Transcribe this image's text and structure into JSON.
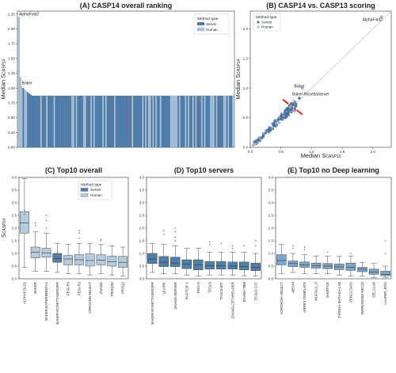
{
  "colors": {
    "server": "#4a7aa8",
    "human": "#adc7dc",
    "server_box": "#4f7fad",
    "human_box": "#b3cce0",
    "nodl_box": "#7aa7cc",
    "axis": "#333333",
    "arrow": "#e8231a",
    "diag": "#bcbcbc"
  },
  "legend": {
    "title": "Method type",
    "server": "Server",
    "human": "Human"
  },
  "chart_data": [
    {
      "id": "A",
      "type": "bar",
      "title": "(A) CASP14 overall ranking",
      "ylabel": "Median S",
      "ylabel_sub": "CASP14",
      "ylim": [
        0,
        2.3
      ],
      "yticks": [
        "0.00",
        "0.25",
        "0.50",
        "0.75",
        "1.00",
        "1.25",
        "1.50",
        "1.75",
        "2.00",
        "2.25"
      ],
      "ytick_values": [
        0,
        0.25,
        0.5,
        0.75,
        1.0,
        1.25,
        1.5,
        1.75,
        2.0,
        2.25
      ],
      "annotations": [
        {
          "text": "AlphaFold2",
          "x_index": 0,
          "y": 2.21
        },
        {
          "text": "Baker",
          "x_index": 2,
          "y": 1.05
        }
      ],
      "first_values": [
        2.2,
        1.18,
        1.02,
        1.0,
        0.97,
        0.95,
        0.93,
        0.91,
        0.89,
        0.87
      ],
      "n_bars": 146,
      "tail_min": 0.08
    },
    {
      "id": "B",
      "type": "scatter",
      "title": "(B) CASP14 vs. CASP13 scoring",
      "xlabel": "Median S",
      "xlabel_sub": "CASP13",
      "ylabel": "Median S",
      "ylabel_sub": "CASP14",
      "xlim": [
        0,
        2.3
      ],
      "ylim": [
        0,
        2.3
      ],
      "xticks": [
        "0.0",
        "0.5",
        "1.0",
        "1.5",
        "2.0"
      ],
      "xtick_values": [
        0,
        0.5,
        1.0,
        1.5,
        2.0
      ],
      "yticks": [
        "0.0",
        "0.5",
        "1.0",
        "1.5",
        "2.0"
      ],
      "ytick_values": [
        0,
        0.5,
        1.0,
        1.5,
        2.0
      ],
      "annotations": [
        {
          "text": "AlphaFold2",
          "x": 2.14,
          "y": 2.21
        },
        {
          "text": "Baker",
          "x": 0.82,
          "y": 1.02
        },
        {
          "text": "Baker-RosettaServer",
          "x": 0.79,
          "y": 0.89
        }
      ],
      "arrows": [
        {
          "x": 0.66,
          "y": 0.7,
          "dir": "from-upper-left"
        },
        {
          "x": 0.72,
          "y": 0.66,
          "dir": "from-lower-right"
        }
      ]
    },
    {
      "id": "C",
      "type": "box",
      "title": "(C) Top10 overall",
      "ylabel": "S",
      "ylabel_sub": "CASP14",
      "ylim": [
        0,
        4.0
      ],
      "yticks": [
        "0.0",
        "0.5",
        "1.0",
        "1.5",
        "2.0",
        "2.5",
        "3.0",
        "3.5",
        "4.0"
      ],
      "ytick_values": [
        0,
        0.5,
        1.0,
        1.5,
        2.0,
        2.5,
        3.0,
        3.5,
        4.0
      ],
      "categories": [
        "ALPHAFOLD2",
        "BAKER",
        "BAKER-EXPERIMENTAL",
        "BAKER-ROSETTASERVER",
        "FEIG-R3",
        "FEIG-R2",
        "VOROCNN-SELECT",
        "ZHANG",
        "PROQ3D",
        "PROQ2"
      ],
      "methods": [
        "human",
        "human",
        "human",
        "server",
        "human",
        "human",
        "human",
        "human",
        "human",
        "human"
      ],
      "boxes": [
        {
          "whislo": 0.45,
          "q1": 1.8,
          "med": 2.2,
          "q3": 2.65,
          "whishi": 3.95,
          "fliers": [
            2.7,
            2.55
          ]
        },
        {
          "whislo": 0.3,
          "q1": 0.82,
          "med": 1.05,
          "q3": 1.25,
          "whishi": 1.85,
          "fliers": [
            2.1,
            2.2
          ]
        },
        {
          "whislo": 0.3,
          "q1": 0.85,
          "med": 1.02,
          "q3": 1.2,
          "whishi": 1.8,
          "fliers": [
            2.0,
            2.3,
            2.5
          ]
        },
        {
          "whislo": 0.25,
          "q1": 0.65,
          "med": 0.8,
          "q3": 1.0,
          "whishi": 1.4,
          "fliers": []
        },
        {
          "whislo": 0.2,
          "q1": 0.55,
          "med": 0.78,
          "q3": 0.92,
          "whishi": 1.35,
          "fliers": []
        },
        {
          "whislo": 0.2,
          "q1": 0.55,
          "med": 0.75,
          "q3": 0.95,
          "whishi": 1.4,
          "fliers": [
            1.6,
            1.8,
            1.9
          ]
        },
        {
          "whislo": 0.15,
          "q1": 0.5,
          "med": 0.72,
          "q3": 0.98,
          "whishi": 1.4,
          "fliers": []
        },
        {
          "whislo": 0.2,
          "q1": 0.55,
          "med": 0.74,
          "q3": 0.95,
          "whishi": 1.35,
          "fliers": [
            1.5,
            1.55
          ]
        },
        {
          "whislo": 0.15,
          "q1": 0.5,
          "med": 0.68,
          "q3": 0.9,
          "whishi": 1.3,
          "fliers": []
        },
        {
          "whislo": 0.1,
          "q1": 0.45,
          "med": 0.65,
          "q3": 0.88,
          "whishi": 1.25,
          "fliers": []
        }
      ]
    },
    {
      "id": "D",
      "type": "box",
      "title": "(D) Top10 servers",
      "ylim": [
        0,
        4.0
      ],
      "yticks": [
        "0.0",
        "0.5",
        "1.0",
        "1.5",
        "2.0",
        "2.5",
        "3.0",
        "3.5",
        "4.0"
      ],
      "ytick_values": [
        0,
        0.5,
        1.0,
        1.5,
        2.0,
        2.5,
        3.0,
        3.5,
        4.0
      ],
      "categories": [
        "BAKER-ROSETTASERVER",
        "QUARK",
        "ZHANG-SERVER",
        "RAPTOR-X",
        "FEIG-S",
        "TFOLD",
        "TFOLD-IDT",
        "ZHANG-CETHREADER",
        "ZHANG-TBM",
        "TFOLD-CAT"
      ],
      "methods": [
        "server",
        "server",
        "server",
        "server",
        "server",
        "server",
        "server",
        "server",
        "server",
        "server"
      ],
      "boxes": [
        {
          "whislo": 0.25,
          "q1": 0.6,
          "med": 0.78,
          "q3": 1.0,
          "whishi": 1.4,
          "fliers": []
        },
        {
          "whislo": 0.2,
          "q1": 0.48,
          "med": 0.65,
          "q3": 0.88,
          "whishi": 1.35,
          "fliers": [
            1.75,
            1.9
          ]
        },
        {
          "whislo": 0.2,
          "q1": 0.48,
          "med": 0.62,
          "q3": 0.85,
          "whishi": 1.3,
          "fliers": [
            1.5,
            1.65,
            1.85,
            2.0
          ]
        },
        {
          "whislo": 0.15,
          "q1": 0.4,
          "med": 0.58,
          "q3": 0.75,
          "whishi": 1.2,
          "fliers": []
        },
        {
          "whislo": 0.1,
          "q1": 0.35,
          "med": 0.55,
          "q3": 0.75,
          "whishi": 1.2,
          "fliers": []
        },
        {
          "whislo": 0.15,
          "q1": 0.38,
          "med": 0.52,
          "q3": 0.68,
          "whishi": 1.05,
          "fliers": [
            1.35,
            1.45
          ]
        },
        {
          "whislo": 0.15,
          "q1": 0.38,
          "med": 0.52,
          "q3": 0.68,
          "whishi": 1.05,
          "fliers": [
            1.4
          ]
        },
        {
          "whislo": 0.15,
          "q1": 0.38,
          "med": 0.5,
          "q3": 0.66,
          "whishi": 1.05,
          "fliers": [
            1.2,
            1.3
          ]
        },
        {
          "whislo": 0.12,
          "q1": 0.35,
          "med": 0.48,
          "q3": 0.66,
          "whishi": 1.05,
          "fliers": [
            1.3
          ]
        },
        {
          "whislo": 0.1,
          "q1": 0.32,
          "med": 0.45,
          "q3": 0.62,
          "whishi": 1.0,
          "fliers": [
            1.3,
            1.5
          ]
        }
      ]
    },
    {
      "id": "E",
      "type": "box",
      "title": "(E) Top10 no Deep learning",
      "ylim": [
        0,
        4.0
      ],
      "yticks": [
        "0.0",
        "0.5",
        "1.0",
        "1.5",
        "2.0",
        "2.5",
        "3.0",
        "3.5",
        "4.0"
      ],
      "ytick_values": [
        0,
        0.5,
        1.0,
        1.5,
        2.0,
        2.5,
        3.0,
        3.5,
        4.0
      ],
      "categories": [
        "VORONOIA-SELECT",
        "MESHI",
        "UNRES-TEMPLATE",
        "MUFOLD_H",
        "SHORTLE",
        "TAKEDA-SHITAKA-LAB",
        "VENCLOVAS",
        "FERNANDEZ-RECIO",
        "DELCLAB",
        "LAUFER_ROS"
      ],
      "methods": [
        "human",
        "human",
        "human",
        "human",
        "human",
        "human",
        "human",
        "human",
        "human",
        "human"
      ],
      "boxes": [
        {
          "whislo": 0.2,
          "q1": 0.55,
          "med": 0.72,
          "q3": 0.95,
          "whishi": 1.35,
          "fliers": []
        },
        {
          "whislo": 0.25,
          "q1": 0.48,
          "med": 0.6,
          "q3": 0.7,
          "whishi": 1.0,
          "fliers": [
            1.2,
            1.3
          ]
        },
        {
          "whislo": 0.2,
          "q1": 0.45,
          "med": 0.55,
          "q3": 0.66,
          "whishi": 0.95,
          "fliers": [
            1.15,
            1.25
          ]
        },
        {
          "whislo": 0.2,
          "q1": 0.42,
          "med": 0.52,
          "q3": 0.62,
          "whishi": 0.9,
          "fliers": []
        },
        {
          "whislo": 0.2,
          "q1": 0.4,
          "med": 0.5,
          "q3": 0.6,
          "whishi": 0.9,
          "fliers": [
            1.05
          ]
        },
        {
          "whislo": 0.15,
          "q1": 0.36,
          "med": 0.47,
          "q3": 0.58,
          "whishi": 0.88,
          "fliers": []
        },
        {
          "whislo": 0.1,
          "q1": 0.33,
          "med": 0.45,
          "q3": 0.62,
          "whishi": 0.9,
          "fliers": [
            1.0
          ]
        },
        {
          "whislo": 0.1,
          "q1": 0.28,
          "med": 0.38,
          "q3": 0.45,
          "whishi": 0.65,
          "fliers": []
        },
        {
          "whislo": 0.05,
          "q1": 0.18,
          "med": 0.27,
          "q3": 0.38,
          "whishi": 0.6,
          "fliers": []
        },
        {
          "whislo": 0.05,
          "q1": 0.12,
          "med": 0.18,
          "q3": 0.3,
          "whishi": 0.5,
          "fliers": [
            1.0,
            1.5
          ]
        }
      ]
    }
  ]
}
